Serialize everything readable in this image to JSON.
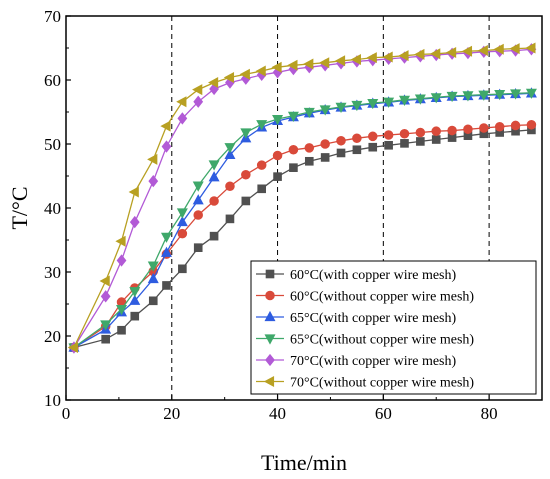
{
  "chart_data": {
    "type": "line",
    "xlabel": "Time/min",
    "ylabel": "T/°C",
    "xlim": [
      0,
      90
    ],
    "ylim": [
      10,
      70
    ],
    "x_ticks": [
      "0",
      "20",
      "40",
      "60",
      "80"
    ],
    "y_ticks": [
      "10",
      "20",
      "30",
      "40",
      "50",
      "60",
      "70"
    ],
    "reference_lines_x": [
      20,
      40,
      60,
      80
    ],
    "grid": false,
    "legend_position": "bottom-right",
    "series": [
      {
        "name": "60°C(with copper wire mesh)",
        "color": "#505050",
        "marker": "square",
        "x": [
          1.5,
          7.5,
          10.5,
          13,
          16.5,
          19,
          22,
          25,
          28,
          31,
          34,
          37,
          40,
          43,
          46,
          49,
          52,
          55,
          58,
          61,
          64,
          67,
          70,
          73,
          76,
          79,
          82,
          85,
          88
        ],
        "y": [
          18.2,
          19.5,
          20.9,
          23.1,
          25.5,
          27.9,
          30.5,
          33.8,
          35.6,
          38.3,
          41.1,
          43.0,
          44.9,
          46.3,
          47.3,
          47.9,
          48.6,
          49.1,
          49.5,
          49.8,
          50.1,
          50.4,
          50.7,
          51.0,
          51.3,
          51.6,
          51.8,
          52.0,
          52.2
        ]
      },
      {
        "name": "60°C(without copper wire mesh)",
        "color": "#d94a3a",
        "marker": "circle",
        "x": [
          1.5,
          7.5,
          10.5,
          13,
          16.5,
          19,
          22,
          25,
          28,
          31,
          34,
          37,
          40,
          43,
          46,
          49,
          52,
          55,
          58,
          61,
          64,
          67,
          70,
          73,
          76,
          79,
          82,
          85,
          88
        ],
        "y": [
          18.2,
          21.5,
          25.3,
          27.5,
          30.1,
          32.8,
          36.0,
          38.9,
          41.1,
          43.4,
          45.2,
          46.7,
          48.2,
          49.1,
          49.4,
          50.0,
          50.5,
          50.9,
          51.2,
          51.4,
          51.6,
          51.8,
          52.0,
          52.1,
          52.3,
          52.5,
          52.7,
          52.9,
          53.0
        ]
      },
      {
        "name": "65°C(with copper wire mesh)",
        "color": "#2e5ce0",
        "marker": "triangle-up",
        "x": [
          1.5,
          7.5,
          10.5,
          13,
          16.5,
          19,
          22,
          25,
          28,
          31,
          34,
          37,
          40,
          43,
          46,
          49,
          52,
          55,
          58,
          61,
          64,
          67,
          70,
          73,
          76,
          79,
          82,
          85,
          88
        ],
        "y": [
          18.2,
          21.0,
          23.7,
          25.5,
          28.9,
          33.0,
          37.8,
          41.2,
          44.8,
          48.3,
          50.9,
          52.6,
          53.6,
          54.2,
          54.8,
          55.3,
          55.7,
          56.0,
          56.3,
          56.5,
          56.8,
          57.0,
          57.2,
          57.4,
          57.5,
          57.6,
          57.7,
          57.8,
          57.9
        ]
      },
      {
        "name": "65°C(without copper wire mesh)",
        "color": "#3fa86a",
        "marker": "triangle-down",
        "x": [
          1.5,
          7.5,
          10.5,
          13,
          16.5,
          19,
          22,
          25,
          28,
          31,
          34,
          37,
          40,
          43,
          46,
          49,
          52,
          55,
          58,
          61,
          64,
          67,
          70,
          73,
          76,
          79,
          82,
          85,
          88
        ],
        "y": [
          18.2,
          21.8,
          24.2,
          27.0,
          31.0,
          35.5,
          39.3,
          43.5,
          46.8,
          49.5,
          51.8,
          53.1,
          53.9,
          54.4,
          55.0,
          55.4,
          55.8,
          56.1,
          56.4,
          56.6,
          56.9,
          57.1,
          57.3,
          57.5,
          57.6,
          57.7,
          57.8,
          57.9,
          58.0
        ]
      },
      {
        "name": "70°C(with copper wire mesh)",
        "color": "#b25ad6",
        "marker": "diamond",
        "x": [
          1.5,
          7.5,
          10.5,
          13,
          16.5,
          19,
          22,
          25,
          28,
          31,
          34,
          37,
          40,
          43,
          46,
          49,
          52,
          55,
          58,
          61,
          64,
          67,
          70,
          73,
          76,
          79,
          82,
          85,
          88
        ],
        "y": [
          18.2,
          26.2,
          31.8,
          37.8,
          44.2,
          49.6,
          54.0,
          56.6,
          58.6,
          59.6,
          60.2,
          60.8,
          61.2,
          61.7,
          62.0,
          62.3,
          62.6,
          62.9,
          63.1,
          63.3,
          63.5,
          63.7,
          63.9,
          64.1,
          64.2,
          64.4,
          64.5,
          64.6,
          64.8
        ]
      },
      {
        "name": "70°C(without copper wire mesh)",
        "color": "#b8a022",
        "marker": "triangle-left",
        "x": [
          1.5,
          7.5,
          10.5,
          13,
          16.5,
          19,
          22,
          25,
          28,
          31,
          34,
          37,
          40,
          43,
          46,
          49,
          52,
          55,
          58,
          61,
          64,
          67,
          70,
          73,
          76,
          79,
          82,
          85,
          88
        ],
        "y": [
          18.2,
          28.6,
          34.8,
          42.5,
          47.6,
          52.8,
          56.6,
          58.5,
          59.6,
          60.4,
          60.9,
          61.4,
          62.0,
          62.3,
          62.5,
          62.7,
          63.0,
          63.2,
          63.5,
          63.6,
          63.8,
          64.0,
          64.1,
          64.3,
          64.5,
          64.6,
          64.8,
          64.9,
          65.0
        ]
      }
    ]
  }
}
